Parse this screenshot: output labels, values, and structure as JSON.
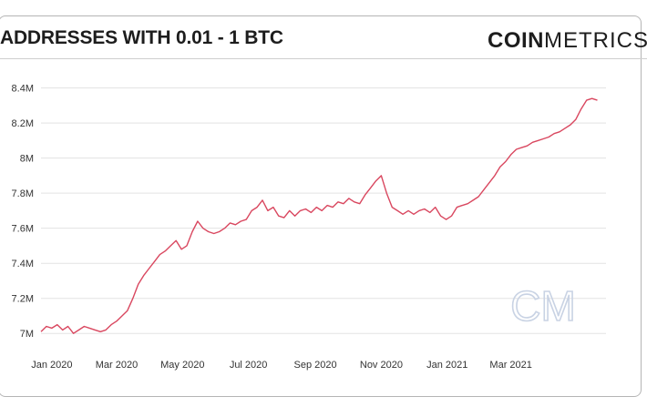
{
  "header": {
    "title": "ADDRESSES WITH 0.01 - 1 BTC",
    "brand_bold": "COIN",
    "brand_light": "METRICS",
    "watermark": "CM"
  },
  "chart_data": {
    "type": "line",
    "title": "ADDRESSES WITH 0.01 - 1 BTC",
    "xlabel": "",
    "ylabel": "",
    "ylim": [
      6.97,
      8.45
    ],
    "y_ticks": [
      7.0,
      7.2,
      7.4,
      7.6,
      7.8,
      8.0,
      8.2,
      8.4
    ],
    "y_tick_labels": [
      "7M",
      "7.2M",
      "7.4M",
      "7.6M",
      "7.8M",
      "8M",
      "8.2M",
      "8.4M"
    ],
    "x_tick_days": [
      0,
      60,
      121,
      182,
      244,
      305,
      366,
      425
    ],
    "x_tick_labels": [
      "Jan 2020",
      "Mar 2020",
      "May 2020",
      "Jul 2020",
      "Sep 2020",
      "Nov 2020",
      "Jan 2021",
      "Mar 2021"
    ],
    "x_range_days": [
      -10,
      513
    ],
    "grid": true,
    "series": [
      {
        "name": "Addresses with 0.01 - 1 BTC (millions)",
        "color": "#d9475f",
        "x_days": [
          -10,
          -5,
          0,
          5,
          10,
          15,
          20,
          25,
          30,
          35,
          40,
          45,
          50,
          55,
          60,
          65,
          70,
          75,
          80,
          85,
          90,
          95,
          100,
          105,
          110,
          115,
          120,
          125,
          130,
          135,
          140,
          145,
          150,
          155,
          160,
          165,
          170,
          175,
          180,
          185,
          190,
          195,
          200,
          205,
          210,
          215,
          220,
          225,
          230,
          235,
          240,
          245,
          250,
          255,
          260,
          265,
          270,
          275,
          280,
          285,
          290,
          295,
          300,
          305,
          310,
          315,
          320,
          325,
          330,
          335,
          340,
          345,
          350,
          355,
          360,
          365,
          370,
          375,
          380,
          385,
          390,
          395,
          400,
          405,
          410,
          415,
          420,
          425,
          430,
          435,
          440,
          445,
          450,
          455,
          460,
          465,
          470,
          475,
          480,
          485,
          490,
          495,
          500,
          505
        ],
        "values": [
          7.01,
          7.04,
          7.03,
          7.05,
          7.02,
          7.04,
          7.0,
          7.02,
          7.04,
          7.03,
          7.02,
          7.01,
          7.02,
          7.05,
          7.07,
          7.1,
          7.13,
          7.2,
          7.28,
          7.33,
          7.37,
          7.41,
          7.45,
          7.47,
          7.5,
          7.53,
          7.48,
          7.5,
          7.58,
          7.64,
          7.6,
          7.58,
          7.57,
          7.58,
          7.6,
          7.63,
          7.62,
          7.64,
          7.65,
          7.7,
          7.72,
          7.76,
          7.7,
          7.72,
          7.67,
          7.66,
          7.7,
          7.67,
          7.7,
          7.71,
          7.69,
          7.72,
          7.7,
          7.73,
          7.72,
          7.75,
          7.74,
          7.77,
          7.75,
          7.74,
          7.79,
          7.83,
          7.87,
          7.9,
          7.8,
          7.72,
          7.7,
          7.68,
          7.7,
          7.68,
          7.7,
          7.71,
          7.69,
          7.72,
          7.67,
          7.65,
          7.67,
          7.72,
          7.73,
          7.74,
          7.76,
          7.78,
          7.82,
          7.86,
          7.9,
          7.95,
          7.98,
          8.02,
          8.05,
          8.06,
          8.07,
          8.09,
          8.1,
          8.11,
          8.12,
          8.14,
          8.15,
          8.17,
          8.19,
          8.22,
          8.28,
          8.33,
          8.34,
          8.33
        ]
      }
    ]
  }
}
